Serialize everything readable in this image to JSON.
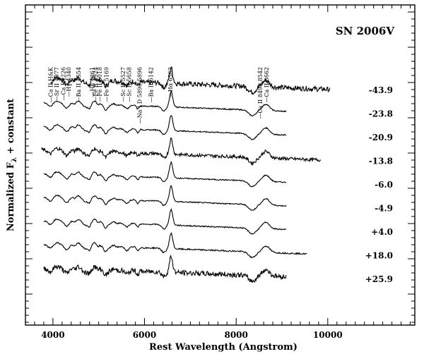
{
  "chart_data": {
    "type": "line",
    "title": "SN 2006V",
    "xlabel": "Rest Wavelength (Angstrom)",
    "ylabel": "Normalized F",
    "ylabel_sub": "λ",
    "ylabel_suffix": " + constant",
    "xlim": [
      3400,
      11900
    ],
    "x_ticks": [
      4000,
      6000,
      8000,
      10000
    ],
    "x_tick_labels": [
      "4000",
      "6000",
      "8000",
      "10000"
    ],
    "x_minor_step": 200,
    "grid": false,
    "line_ids": [
      {
        "label": "Ca II H&K",
        "x": 3950
      },
      {
        "label": "Sr II 4077",
        "x": 4077
      },
      {
        "label": "Ca I 4226",
        "x": 4226
      },
      {
        "label": "Hγ 4340",
        "x": 4340
      },
      {
        "label": "Ba II 4554",
        "x": 4554
      },
      {
        "label": "Hβ 4861",
        "x": 4861
      },
      {
        "label": "Fe II 4924",
        "x": 4924
      },
      {
        "label": "Fe II 5018",
        "x": 5018
      },
      {
        "label": "Fe II 5169",
        "x": 5169
      },
      {
        "label": "Sc II 5527",
        "x": 5527
      },
      {
        "label": "Sc II 5658",
        "x": 5658
      },
      {
        "label": "Na I D 5890,5896",
        "x": 5893
      },
      {
        "label": "Ba II 6142",
        "x": 6142
      },
      {
        "label": "Hα 6563",
        "x": 6563
      },
      {
        "label": "Ca II 8498,8542",
        "x": 8520
      },
      {
        "label": "Ca II 8662",
        "x": 8662
      }
    ],
    "series": [
      {
        "name": "-43.9",
        "x_range": [
          3950,
          10050
        ],
        "noise": 0.9
      },
      {
        "name": "-23.8",
        "x_range": [
          3800,
          9100
        ],
        "noise": 0.2
      },
      {
        "name": "-20.9",
        "x_range": [
          3800,
          9100
        ],
        "noise": 0.2
      },
      {
        "name": "-13.8",
        "x_range": [
          3750,
          9850
        ],
        "noise": 0.6
      },
      {
        "name": "-6.0",
        "x_range": [
          3800,
          9100
        ],
        "noise": 0.2
      },
      {
        "name": "-4.9",
        "x_range": [
          3800,
          9100
        ],
        "noise": 0.2
      },
      {
        "name": "+4.0",
        "x_range": [
          3800,
          9100
        ],
        "noise": 0.2
      },
      {
        "name": "+18.0",
        "x_range": [
          3800,
          9550
        ],
        "noise": 0.25
      },
      {
        "name": "+25.9",
        "x_range": [
          3800,
          9100
        ],
        "noise": 0.9
      }
    ]
  }
}
